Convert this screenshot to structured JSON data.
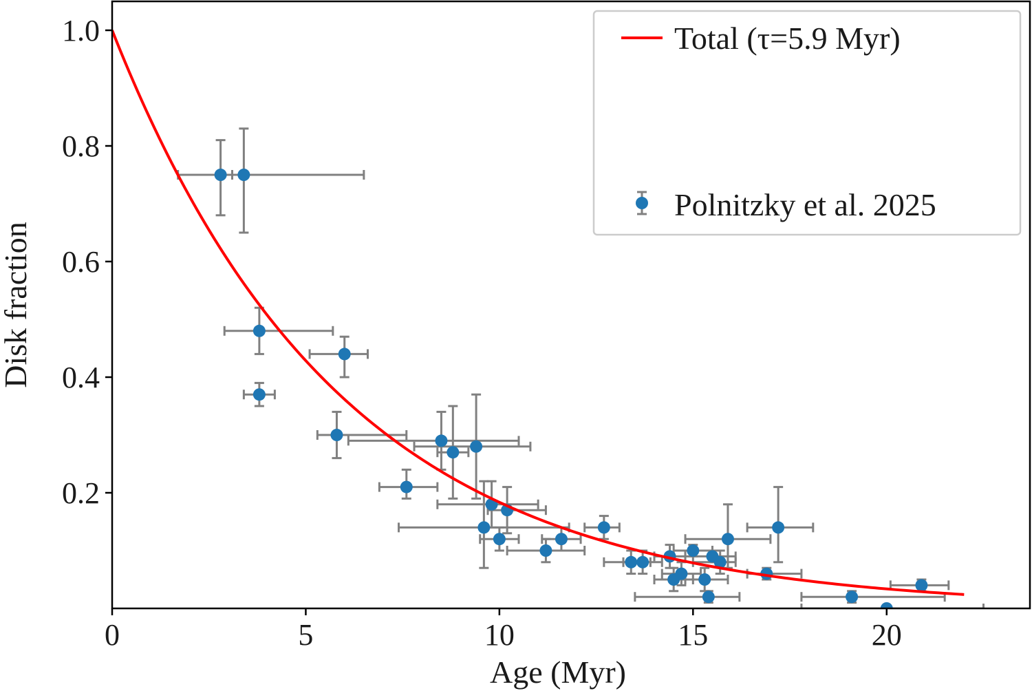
{
  "chart_data": {
    "type": "scatter",
    "title": "",
    "xlabel": "Age (Myr)",
    "ylabel": "Disk fraction",
    "xlim": [
      0,
      23.7
    ],
    "ylim": [
      0,
      1.05
    ],
    "xticks": [
      0,
      5,
      10,
      15,
      20
    ],
    "xtick_labels": [
      "0",
      "5",
      "10",
      "15",
      "20"
    ],
    "yticks": [
      0.2,
      0.4,
      0.6,
      0.8,
      1.0
    ],
    "ytick_labels": [
      "0.2",
      "0.4",
      "0.6",
      "0.8",
      "1.0"
    ],
    "grid": false,
    "legend_position": "top-right",
    "colors": {
      "model": "#ff0000",
      "points": "#1f77b4",
      "errorbars": "#808080"
    },
    "model": {
      "name": "Total (τ=5.9 Myr)",
      "function": "exp(-t/tau)",
      "tau": 5.9,
      "x_range": [
        0,
        22
      ]
    },
    "series": [
      {
        "name": "Polnitzky et al. 2025",
        "points": [
          {
            "x": 2.8,
            "y": 0.75,
            "xerr": [
              1.1,
              0.3
            ],
            "yerr": [
              0.07,
              0.06
            ]
          },
          {
            "x": 3.4,
            "y": 0.75,
            "xerr": [
              0.3,
              3.1
            ],
            "yerr": [
              0.1,
              0.08
            ]
          },
          {
            "x": 3.8,
            "y": 0.48,
            "xerr": [
              0.9,
              1.9
            ],
            "yerr": [
              0.04,
              0.04
            ]
          },
          {
            "x": 3.8,
            "y": 0.37,
            "xerr": [
              0.4,
              0.4
            ],
            "yerr": [
              0.02,
              0.02
            ]
          },
          {
            "x": 6.0,
            "y": 0.44,
            "xerr": [
              0.9,
              0.6
            ],
            "yerr": [
              0.04,
              0.03
            ]
          },
          {
            "x": 5.8,
            "y": 0.3,
            "xerr": [
              0.5,
              1.8
            ],
            "yerr": [
              0.04,
              0.04
            ]
          },
          {
            "x": 7.6,
            "y": 0.21,
            "xerr": [
              0.7,
              0.8
            ],
            "yerr": [
              0.02,
              0.03
            ]
          },
          {
            "x": 8.5,
            "y": 0.29,
            "xerr": [
              2.4,
              2.0
            ],
            "yerr": [
              0.05,
              0.05
            ]
          },
          {
            "x": 8.8,
            "y": 0.27,
            "xerr": [
              0.4,
              0.4
            ],
            "yerr": [
              0.08,
              0.08
            ]
          },
          {
            "x": 9.4,
            "y": 0.28,
            "xerr": [
              1.6,
              1.4
            ],
            "yerr": [
              0.09,
              0.09
            ]
          },
          {
            "x": 9.6,
            "y": 0.14,
            "xerr": [
              2.2,
              2.2
            ],
            "yerr": [
              0.07,
              0.08
            ]
          },
          {
            "x": 9.8,
            "y": 0.18,
            "xerr": [
              1.4,
              1.2
            ],
            "yerr": [
              0.04,
              0.04
            ]
          },
          {
            "x": 10.0,
            "y": 0.12,
            "xerr": [
              0.5,
              0.5
            ],
            "yerr": [
              0.02,
              0.02
            ]
          },
          {
            "x": 10.2,
            "y": 0.17,
            "xerr": [
              0.5,
              1.0
            ],
            "yerr": [
              0.04,
              0.04
            ]
          },
          {
            "x": 11.2,
            "y": 0.1,
            "xerr": [
              1.0,
              1.0
            ],
            "yerr": [
              0.02,
              0.02
            ]
          },
          {
            "x": 11.6,
            "y": 0.12,
            "xerr": [
              0.5,
              0.5
            ],
            "yerr": [
              0.02,
              0.02
            ]
          },
          {
            "x": 12.7,
            "y": 0.14,
            "xerr": [
              0.5,
              0.4
            ],
            "yerr": [
              0.02,
              0.02
            ]
          },
          {
            "x": 13.4,
            "y": 0.08,
            "xerr": [
              0.7,
              0.5
            ],
            "yerr": [
              0.02,
              0.02
            ]
          },
          {
            "x": 13.7,
            "y": 0.08,
            "xerr": [
              0.5,
              0.5
            ],
            "yerr": [
              0.02,
              0.02
            ]
          },
          {
            "x": 14.4,
            "y": 0.09,
            "xerr": [
              0.4,
              0.4
            ],
            "yerr": [
              0.02,
              0.02
            ]
          },
          {
            "x": 14.5,
            "y": 0.05,
            "xerr": [
              0.5,
              0.5
            ],
            "yerr": [
              0.02,
              0.02
            ]
          },
          {
            "x": 14.7,
            "y": 0.06,
            "xerr": [
              0.5,
              0.5
            ],
            "yerr": [
              0.02,
              0.02
            ]
          },
          {
            "x": 15.0,
            "y": 0.1,
            "xerr": [
              0.5,
              0.5
            ],
            "yerr": [
              0.01,
              0.01
            ]
          },
          {
            "x": 15.3,
            "y": 0.05,
            "xerr": [
              0.5,
              0.6
            ],
            "yerr": [
              0.02,
              0.02
            ]
          },
          {
            "x": 15.4,
            "y": 0.02,
            "xerr": [
              1.9,
              0.8
            ],
            "yerr": [
              0.01,
              0.01
            ]
          },
          {
            "x": 15.5,
            "y": 0.09,
            "xerr": [
              0.7,
              0.6
            ],
            "yerr": [
              0.01,
              0.01
            ]
          },
          {
            "x": 15.7,
            "y": 0.08,
            "xerr": [
              0.7,
              0.4
            ],
            "yerr": [
              0.02,
              0.02
            ]
          },
          {
            "x": 15.9,
            "y": 0.12,
            "xerr": [
              1.1,
              1.1
            ],
            "yerr": [
              0.05,
              0.06
            ]
          },
          {
            "x": 16.9,
            "y": 0.06,
            "xerr": [
              0.5,
              0.9
            ],
            "yerr": [
              0.01,
              0.01
            ]
          },
          {
            "x": 17.2,
            "y": 0.14,
            "xerr": [
              0.8,
              0.9
            ],
            "yerr": [
              0.06,
              0.07
            ]
          },
          {
            "x": 19.1,
            "y": 0.02,
            "xerr": [
              1.3,
              2.4
            ],
            "yerr": [
              0.01,
              0.01
            ]
          },
          {
            "x": 20.0,
            "y": 0.0,
            "xerr": [
              2.2,
              2.5
            ],
            "yerr": [
              0.0,
              0.0
            ]
          },
          {
            "x": 20.9,
            "y": 0.04,
            "xerr": [
              0.8,
              0.7
            ],
            "yerr": [
              0.01,
              0.01
            ]
          }
        ]
      }
    ]
  }
}
